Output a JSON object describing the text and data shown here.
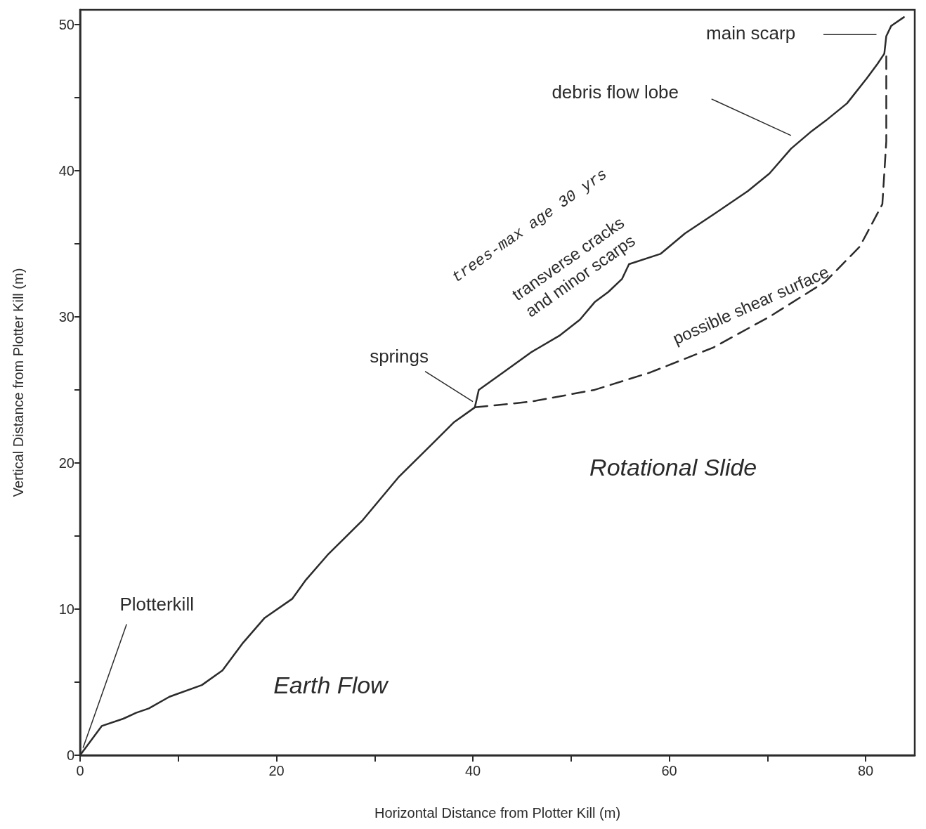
{
  "chart_data": {
    "type": "line",
    "xlabel": "Horizontal Distance from Plotter Kill (m)",
    "ylabel": "Vertical Distance from Plotter Kill (m)",
    "xlim": [
      0,
      85
    ],
    "ylim": [
      0,
      51
    ],
    "xticks": [
      0,
      {
        "value": 10,
        "label": null
      },
      20,
      {
        "value": 30,
        "label": null
      },
      40,
      {
        "value": 50,
        "label": null
      },
      60,
      {
        "value": 70,
        "label": null
      },
      80
    ],
    "yticks": [
      0,
      {
        "value": 5,
        "label": null
      },
      10,
      {
        "value": 15,
        "label": null
      },
      20,
      {
        "value": 25,
        "label": null
      },
      30,
      {
        "value": 35,
        "label": null
      },
      40,
      {
        "value": 45,
        "label": null
      },
      50
    ],
    "grid": false,
    "marker": "none",
    "series": [
      {
        "color": "#2b2b2b",
        "line_style": "solid",
        "x": [
          0,
          2.2,
          4.4,
          5.7,
          7,
          9.1,
          12.4,
          14.5,
          16.6,
          18.8,
          21.6,
          23,
          25.2,
          28.8,
          32.4,
          36,
          38.1,
          40.2,
          40.6,
          43.1,
          46,
          48.8,
          50.9,
          52.4,
          53.8,
          55.2,
          55.9,
          59.1,
          61.6,
          64.5,
          68,
          70.2,
          72.4,
          74.5,
          75.9,
          78.1,
          80.1,
          81.2,
          81.9,
          82.1,
          82.6,
          83.9
        ],
        "values": [
          0,
          2,
          2.5,
          2.9,
          3.2,
          4,
          4.8,
          5.8,
          7.7,
          9.4,
          10.7,
          12,
          13.7,
          16.1,
          19,
          21.4,
          22.8,
          23.8,
          25,
          26.2,
          27.6,
          28.7,
          29.8,
          31,
          31.7,
          32.6,
          33.6,
          34.3,
          35.7,
          37,
          38.6,
          39.8,
          41.5,
          42.7,
          43.4,
          44.6,
          46.3,
          47.3,
          48,
          49.2,
          49.9,
          50.5
        ]
      },
      {
        "color": "#2b2b2b",
        "line_style": "dashed",
        "x": [
          40.2,
          46,
          52.4,
          58.1,
          64.5,
          70.2,
          75.9,
          79.4,
          81.7,
          82.1,
          82.1
        ],
        "values": [
          23.8,
          24.2,
          25,
          26.2,
          27.9,
          30,
          32.4,
          34.8,
          37.7,
          42,
          48
        ]
      }
    ],
    "annotations": [
      "main scarp",
      "debris flow lobe",
      {
        "text": "springs",
        "x": 40,
        "y": 24.2
      },
      {
        "text": "Plotterkill",
        "x": 0.3,
        "y": 0.5
      },
      "trees-max age 30 yrs",
      "transverse cracks\nand minor scarps",
      "possible shear surface",
      "Rotational Slide",
      "Earth Flow"
    ]
  }
}
